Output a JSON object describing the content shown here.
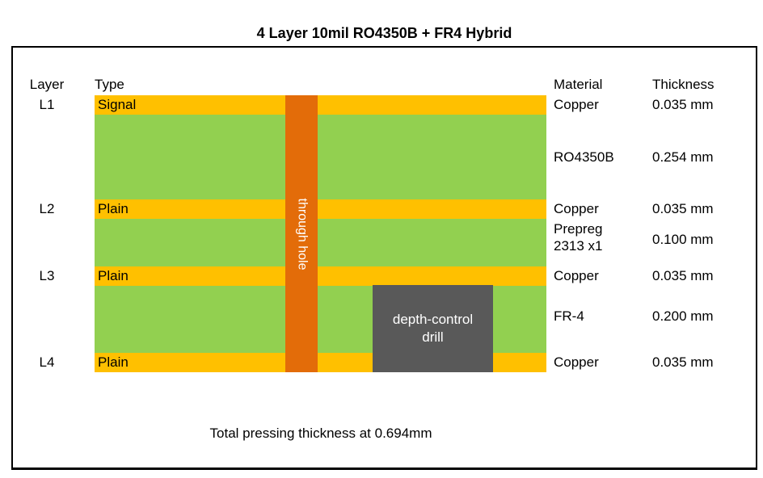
{
  "title": "4 Layer 10mil RO4350B + FR4 Hybrid",
  "columns": {
    "layer": "Layer",
    "type": "Type",
    "material": "Material",
    "thickness": "Thickness"
  },
  "stackup": {
    "layers": [
      {
        "layer": "L1",
        "type": "Signal",
        "material": "Copper",
        "thickness": "0.035 mm",
        "kind": "copper"
      },
      {
        "layer": "",
        "type": "",
        "material": "RO4350B",
        "thickness": "0.254 mm",
        "kind": "core"
      },
      {
        "layer": "L2",
        "type": "Plain",
        "material": "Copper",
        "thickness": "0.035 mm",
        "kind": "copper"
      },
      {
        "layer": "",
        "type": "",
        "material": "Prepreg 2313 x1",
        "thickness": "0.100 mm",
        "kind": "prepreg"
      },
      {
        "layer": "L3",
        "type": "Plain",
        "material": "Copper",
        "thickness": "0.035 mm",
        "kind": "copper"
      },
      {
        "layer": "",
        "type": "",
        "material": "FR-4",
        "thickness": "0.200 mm",
        "kind": "core"
      },
      {
        "layer": "L4",
        "type": "Plain",
        "material": "Copper",
        "thickness": "0.035 mm",
        "kind": "copper"
      }
    ]
  },
  "annotations": {
    "through_hole": "through hole",
    "depth_control_drill": "depth-control drill",
    "total": "Total pressing thickness at 0.694mm"
  },
  "colors": {
    "copper": "#FFC000",
    "core_green": "#92D050",
    "through_hole_orange": "#E36C09",
    "drill_gray": "#595959",
    "border": "#000000",
    "background": "#FFFFFF"
  }
}
